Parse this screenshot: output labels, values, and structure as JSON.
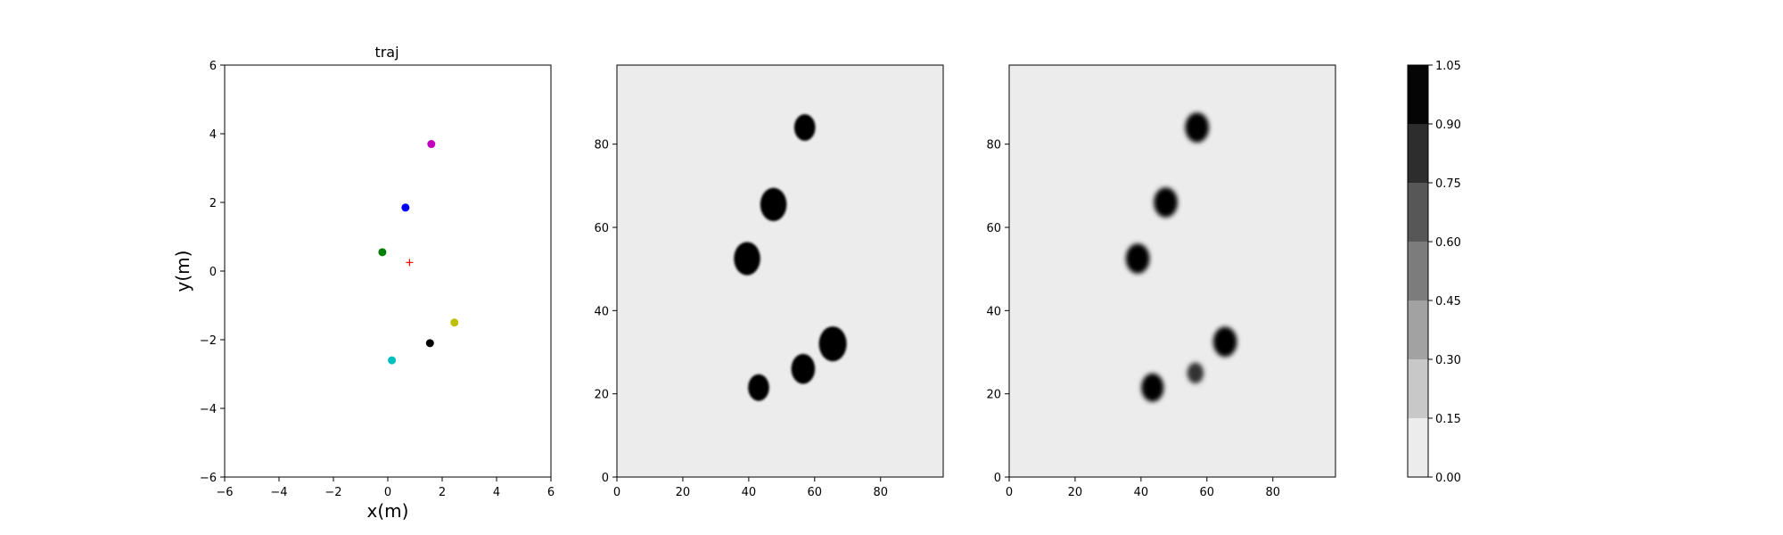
{
  "chart_data": [
    {
      "type": "scatter",
      "title": "traj",
      "xlabel": "x(m)",
      "ylabel": "y(m)",
      "xlim": [
        -6,
        6
      ],
      "ylim": [
        -6,
        6
      ],
      "xticks": [
        "−6",
        "−4",
        "−2",
        "0",
        "2",
        "4",
        "6"
      ],
      "yticks": [
        "−6",
        "−4",
        "−2",
        "0",
        "2",
        "4",
        "6"
      ],
      "grid": false,
      "points": [
        {
          "x": 1.6,
          "y": 3.7,
          "color": "#bf00bf",
          "marker": "circle"
        },
        {
          "x": 0.65,
          "y": 1.85,
          "color": "#0000ff",
          "marker": "circle"
        },
        {
          "x": -0.2,
          "y": 0.55,
          "color": "#007f00",
          "marker": "circle"
        },
        {
          "x": 2.45,
          "y": -1.5,
          "color": "#bfbf00",
          "marker": "circle"
        },
        {
          "x": 1.55,
          "y": -2.1,
          "color": "#000000",
          "marker": "circle"
        },
        {
          "x": 0.15,
          "y": -2.6,
          "color": "#00bfbf",
          "marker": "circle"
        },
        {
          "x": 0.8,
          "y": 0.25,
          "color": "#ff0000",
          "marker": "plus"
        }
      ]
    },
    {
      "type": "heatmap",
      "xlim": [
        0,
        99
      ],
      "ylim": [
        0,
        99
      ],
      "xticks": [
        "0",
        "20",
        "40",
        "60",
        "80"
      ],
      "yticks": [
        "0",
        "20",
        "40",
        "60",
        "80"
      ],
      "background_value": 0.05,
      "blobs": [
        {
          "x": 57,
          "y": 84,
          "r": 3.2,
          "value": 1.0
        },
        {
          "x": 47.5,
          "y": 65.5,
          "r": 4.0,
          "value": 1.0
        },
        {
          "x": 39.5,
          "y": 52.5,
          "r": 4.0,
          "value": 1.0
        },
        {
          "x": 65.5,
          "y": 32,
          "r": 4.2,
          "value": 1.0
        },
        {
          "x": 56.5,
          "y": 26,
          "r": 3.6,
          "value": 1.0
        },
        {
          "x": 43,
          "y": 21.5,
          "r": 3.2,
          "value": 1.0
        }
      ]
    },
    {
      "type": "heatmap",
      "xlim": [
        0,
        99
      ],
      "ylim": [
        0,
        99
      ],
      "xticks": [
        "0",
        "20",
        "40",
        "60",
        "80"
      ],
      "yticks": [
        "0",
        "20",
        "40",
        "60",
        "80"
      ],
      "background_value": 0.05,
      "blobs": [
        {
          "x": 57,
          "y": 84,
          "r": 3.6,
          "value": 1.0
        },
        {
          "x": 47.5,
          "y": 66,
          "r": 3.6,
          "value": 1.0
        },
        {
          "x": 39,
          "y": 52.5,
          "r": 3.6,
          "value": 1.0
        },
        {
          "x": 65.5,
          "y": 32.5,
          "r": 3.6,
          "value": 1.0
        },
        {
          "x": 56.5,
          "y": 25,
          "r": 2.5,
          "value": 0.8
        },
        {
          "x": 43.5,
          "y": 21.5,
          "r": 3.4,
          "value": 1.0
        }
      ]
    }
  ],
  "colorbar": {
    "levels": [
      0.0,
      0.15,
      0.3,
      0.45,
      0.6,
      0.75,
      0.9,
      1.05
    ],
    "ticks": [
      "0.00",
      "0.15",
      "0.30",
      "0.45",
      "0.60",
      "0.75",
      "0.90",
      "1.05"
    ],
    "colors": [
      "#ececec",
      "#c8c8c8",
      "#a2a2a2",
      "#7c7c7c",
      "#575757",
      "#2d2d2d",
      "#050505"
    ]
  }
}
